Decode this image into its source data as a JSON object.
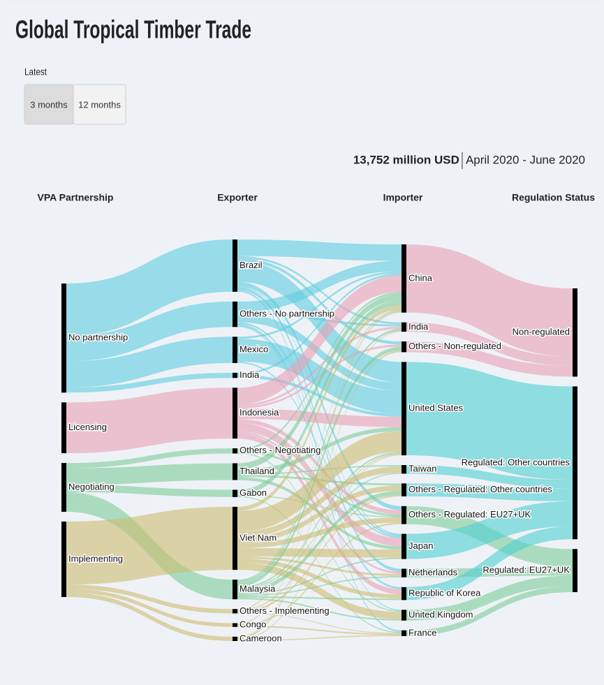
{
  "header": {
    "title": "Global Tropical Timber Trade"
  },
  "controls": {
    "label": "Latest",
    "buttons": [
      "3 months",
      "12 months"
    ],
    "active": 0
  },
  "chart_data": {
    "type": "sankey",
    "total_label": "13,752 million USD",
    "period": "April 2020 - June 2020",
    "columns": [
      {
        "name": "VPA Partnership",
        "nodes": [
          "No partnership",
          "Licensing",
          "Negotiating",
          "Implementing"
        ]
      },
      {
        "name": "Exporter",
        "nodes": [
          "Brazil",
          "Others - No partnership",
          "Mexico",
          "India",
          "Indonesia",
          "Others - Negotiating",
          "Thailand",
          "Gabon",
          "Viet Nam",
          "Malaysia",
          "Others - Implementing",
          "Congo",
          "Cameroon"
        ]
      },
      {
        "name": "Importer",
        "nodes": [
          "China",
          "India",
          "Others - Non-regulated",
          "United States",
          "Taiwan",
          "Others - Regulated: Other countries",
          "Others - Regulated: EU27+UK",
          "Japan",
          "Netherlands",
          "Republic of Korea",
          "United Kingdom",
          "France"
        ]
      },
      {
        "name": "Regulation Status",
        "nodes": [
          "Non-regulated",
          "Regulated: Other countries",
          "Regulated: EU27+UK"
        ]
      }
    ],
    "colors": {
      "No partnership": "#5fcbe0",
      "Licensing": "#eaa0b4",
      "Negotiating": "#7fcb97",
      "Implementing": "#cdbb6f",
      "Non-regulated": "#eaa0b4",
      "Regulated: Other countries": "#4fcfd0",
      "Regulated: EU27+UK": "#7fcb97"
    },
    "links": [
      [
        {
          "source": "No partnership",
          "target": "Brazil",
          "value": 2530
        },
        {
          "source": "No partnership",
          "target": "Others - No partnership",
          "value": 1230
        },
        {
          "source": "No partnership",
          "target": "Mexico",
          "value": 1270
        },
        {
          "source": "No partnership",
          "target": "India",
          "value": 250
        },
        {
          "source": "Licensing",
          "target": "Indonesia",
          "value": 2460
        },
        {
          "source": "Negotiating",
          "target": "Others - Negotiating",
          "value": 250
        },
        {
          "source": "Negotiating",
          "target": "Thailand",
          "value": 810
        },
        {
          "source": "Negotiating",
          "target": "Gabon",
          "value": 350
        },
        {
          "source": "Negotiating",
          "target": "Malaysia",
          "value": 950
        },
        {
          "source": "Implementing",
          "target": "Viet Nam",
          "value": 3052
        },
        {
          "source": "Implementing",
          "target": "Others - Implementing",
          "value": 210
        },
        {
          "source": "Implementing",
          "target": "Congo",
          "value": 180
        },
        {
          "source": "Implementing",
          "target": "Cameroon",
          "value": 210
        }
      ],
      [
        {
          "source": "Brazil",
          "target": "China",
          "value": 800
        },
        {
          "source": "Brazil",
          "target": "India",
          "value": 100
        },
        {
          "source": "Brazil",
          "target": "Others - Non-regulated",
          "value": 150
        },
        {
          "source": "Brazil",
          "target": "United States",
          "value": 1000
        },
        {
          "source": "Brazil",
          "target": "Others - Regulated: EU27+UK",
          "value": 200
        },
        {
          "source": "Brazil",
          "target": "Japan",
          "value": 50
        },
        {
          "source": "Brazil",
          "target": "Netherlands",
          "value": 150
        },
        {
          "source": "Brazil",
          "target": "France",
          "value": 80
        },
        {
          "source": "Others - No partnership",
          "target": "China",
          "value": 500
        },
        {
          "source": "Others - No partnership",
          "target": "India",
          "value": 100
        },
        {
          "source": "Others - No partnership",
          "target": "United States",
          "value": 400
        },
        {
          "source": "Others - No partnership",
          "target": "Japan",
          "value": 80
        },
        {
          "source": "Others - No partnership",
          "target": "Republic of Korea",
          "value": 100
        },
        {
          "source": "Others - No partnership",
          "target": "United Kingdom",
          "value": 50
        },
        {
          "source": "Mexico",
          "target": "China",
          "value": 100
        },
        {
          "source": "Mexico",
          "target": "United States",
          "value": 1100
        },
        {
          "source": "Mexico",
          "target": "Japan",
          "value": 70
        },
        {
          "source": "India",
          "target": "China",
          "value": 100
        },
        {
          "source": "India",
          "target": "United States",
          "value": 150
        },
        {
          "source": "Indonesia",
          "target": "China",
          "value": 800
        },
        {
          "source": "Indonesia",
          "target": "India",
          "value": 110
        },
        {
          "source": "Indonesia",
          "target": "Others - Non-regulated",
          "value": 100
        },
        {
          "source": "Indonesia",
          "target": "United States",
          "value": 500
        },
        {
          "source": "Indonesia",
          "target": "Others - Regulated: EU27+UK",
          "value": 200
        },
        {
          "source": "Indonesia",
          "target": "Japan",
          "value": 400
        },
        {
          "source": "Indonesia",
          "target": "Netherlands",
          "value": 100
        },
        {
          "source": "Indonesia",
          "target": "Republic of Korea",
          "value": 250
        },
        {
          "source": "Others - Negotiating",
          "target": "China",
          "value": 100
        },
        {
          "source": "Others - Negotiating",
          "target": "Others - Regulated: EU27+UK",
          "value": 100
        },
        {
          "source": "Others - Negotiating",
          "target": "United Kingdom",
          "value": 50
        },
        {
          "source": "Thailand",
          "target": "China",
          "value": 300
        },
        {
          "source": "Thailand",
          "target": "United States",
          "value": 200
        },
        {
          "source": "Thailand",
          "target": "Taiwan",
          "value": 60
        },
        {
          "source": "Thailand",
          "target": "Others - Regulated: Other countries",
          "value": 100
        },
        {
          "source": "Thailand",
          "target": "Japan",
          "value": 150
        },
        {
          "source": "Gabon",
          "target": "China",
          "value": 250
        },
        {
          "source": "Gabon",
          "target": "Others - Regulated: EU27+UK",
          "value": 50
        },
        {
          "source": "Gabon",
          "target": "France",
          "value": 50
        },
        {
          "source": "Viet Nam",
          "target": "China",
          "value": 200
        },
        {
          "source": "Viet Nam",
          "target": "United States",
          "value": 1000
        },
        {
          "source": "Viet Nam",
          "target": "Taiwan",
          "value": 300
        },
        {
          "source": "Viet Nam",
          "target": "Others - Regulated: Other countries",
          "value": 250
        },
        {
          "source": "Viet Nam",
          "target": "Others - Regulated: EU27+UK",
          "value": 250
        },
        {
          "source": "Viet Nam",
          "target": "Japan",
          "value": 400
        },
        {
          "source": "Viet Nam",
          "target": "Netherlands",
          "value": 102
        },
        {
          "source": "Viet Nam",
          "target": "Republic of Korea",
          "value": 200
        },
        {
          "source": "Viet Nam",
          "target": "United Kingdom",
          "value": 350
        },
        {
          "source": "Malaysia",
          "target": "China",
          "value": 50
        },
        {
          "source": "Malaysia",
          "target": "India",
          "value": 100
        },
        {
          "source": "Malaysia",
          "target": "Others - Non-regulated",
          "value": 200
        },
        {
          "source": "Malaysia",
          "target": "United States",
          "value": 72
        },
        {
          "source": "Malaysia",
          "target": "Taiwan",
          "value": 55
        },
        {
          "source": "Malaysia",
          "target": "Others - Regulated: Other countries",
          "value": 200
        },
        {
          "source": "Malaysia",
          "target": "Japan",
          "value": 65
        },
        {
          "source": "Malaysia",
          "target": "Netherlands",
          "value": 63
        },
        {
          "source": "Malaysia",
          "target": "Republic of Korea",
          "value": 75
        },
        {
          "source": "Malaysia",
          "target": "United Kingdom",
          "value": 70
        },
        {
          "source": "Others - Implementing",
          "target": "China",
          "value": 50
        },
        {
          "source": "Others - Implementing",
          "target": "United States",
          "value": 50
        },
        {
          "source": "Others - Implementing",
          "target": "Others - Regulated: Other countries",
          "value": 75
        },
        {
          "source": "Others - Implementing",
          "target": "France",
          "value": 35
        },
        {
          "source": "Congo",
          "target": "China",
          "value": 50
        },
        {
          "source": "Congo",
          "target": "Others - Regulated: EU27+UK",
          "value": 65
        },
        {
          "source": "Congo",
          "target": "France",
          "value": 65
        },
        {
          "source": "Cameroon",
          "target": "India",
          "value": 40
        },
        {
          "source": "Cameroon",
          "target": "Others - Non-regulated",
          "value": 70
        },
        {
          "source": "Cameroon",
          "target": "United States",
          "value": 45
        },
        {
          "source": "Cameroon",
          "target": "Others - Regulated: EU27+UK",
          "value": 5
        },
        {
          "source": "Cameroon",
          "target": "France",
          "value": 50
        }
      ],
      [
        {
          "source": "China",
          "target": "Non-regulated",
          "value": 3300
        },
        {
          "source": "India",
          "target": "Non-regulated",
          "value": 450
        },
        {
          "source": "Others - Non-regulated",
          "target": "Non-regulated",
          "value": 520
        },
        {
          "source": "United States",
          "target": "Regulated: Other countries",
          "value": 4517
        },
        {
          "source": "Taiwan",
          "target": "Regulated: Other countries",
          "value": 415
        },
        {
          "source": "Others - Regulated: Other countries",
          "target": "Regulated: Other countries",
          "value": 625
        },
        {
          "source": "Others - Regulated: EU27+UK",
          "target": "Regulated: EU27+UK",
          "value": 870
        },
        {
          "source": "Japan",
          "target": "Regulated: Other countries",
          "value": 1215
        },
        {
          "source": "Netherlands",
          "target": "Regulated: EU27+UK",
          "value": 415
        },
        {
          "source": "Republic of Korea",
          "target": "Regulated: Other countries",
          "value": 625
        },
        {
          "source": "United Kingdom",
          "target": "Regulated: EU27+UK",
          "value": 520
        },
        {
          "source": "France",
          "target": "Regulated: EU27+UK",
          "value": 280
        }
      ]
    ]
  }
}
